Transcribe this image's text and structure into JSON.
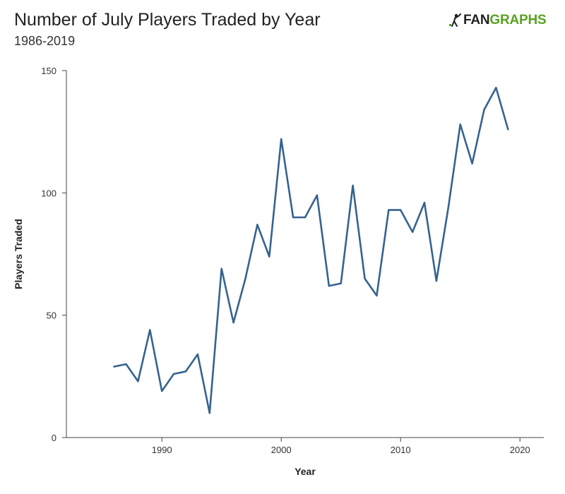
{
  "header": {
    "title": "Number of July Players Traded by Year",
    "subtitle": "1986-2019",
    "logo_prefix": "FAN",
    "logo_suffix": "GRAPHS"
  },
  "colors": {
    "line": "#35638f",
    "axis": "#444444",
    "logo_green": "#5aa122"
  },
  "chart_data": {
    "type": "line",
    "xlabel": "Year",
    "ylabel": "Players Traded",
    "xlim": [
      1982,
      2022
    ],
    "ylim": [
      0,
      150
    ],
    "xticks": [
      1990,
      2000,
      2010,
      2020
    ],
    "yticks": [
      0,
      50,
      100,
      150
    ],
    "grid": false,
    "legend": "none",
    "x": [
      1986,
      1987,
      1988,
      1989,
      1990,
      1991,
      1992,
      1993,
      1994,
      1995,
      1996,
      1997,
      1998,
      1999,
      2000,
      2001,
      2002,
      2003,
      2004,
      2005,
      2006,
      2007,
      2008,
      2009,
      2010,
      2011,
      2012,
      2013,
      2014,
      2015,
      2016,
      2017,
      2018,
      2019
    ],
    "series": [
      {
        "values": [
          29,
          30,
          23,
          44,
          19,
          26,
          27,
          34,
          10,
          69,
          47,
          65,
          87,
          74,
          122,
          90,
          90,
          99,
          62,
          63,
          103,
          65,
          58,
          93,
          93,
          84,
          96,
          64,
          94,
          128,
          112,
          134,
          143,
          126
        ]
      }
    ]
  }
}
